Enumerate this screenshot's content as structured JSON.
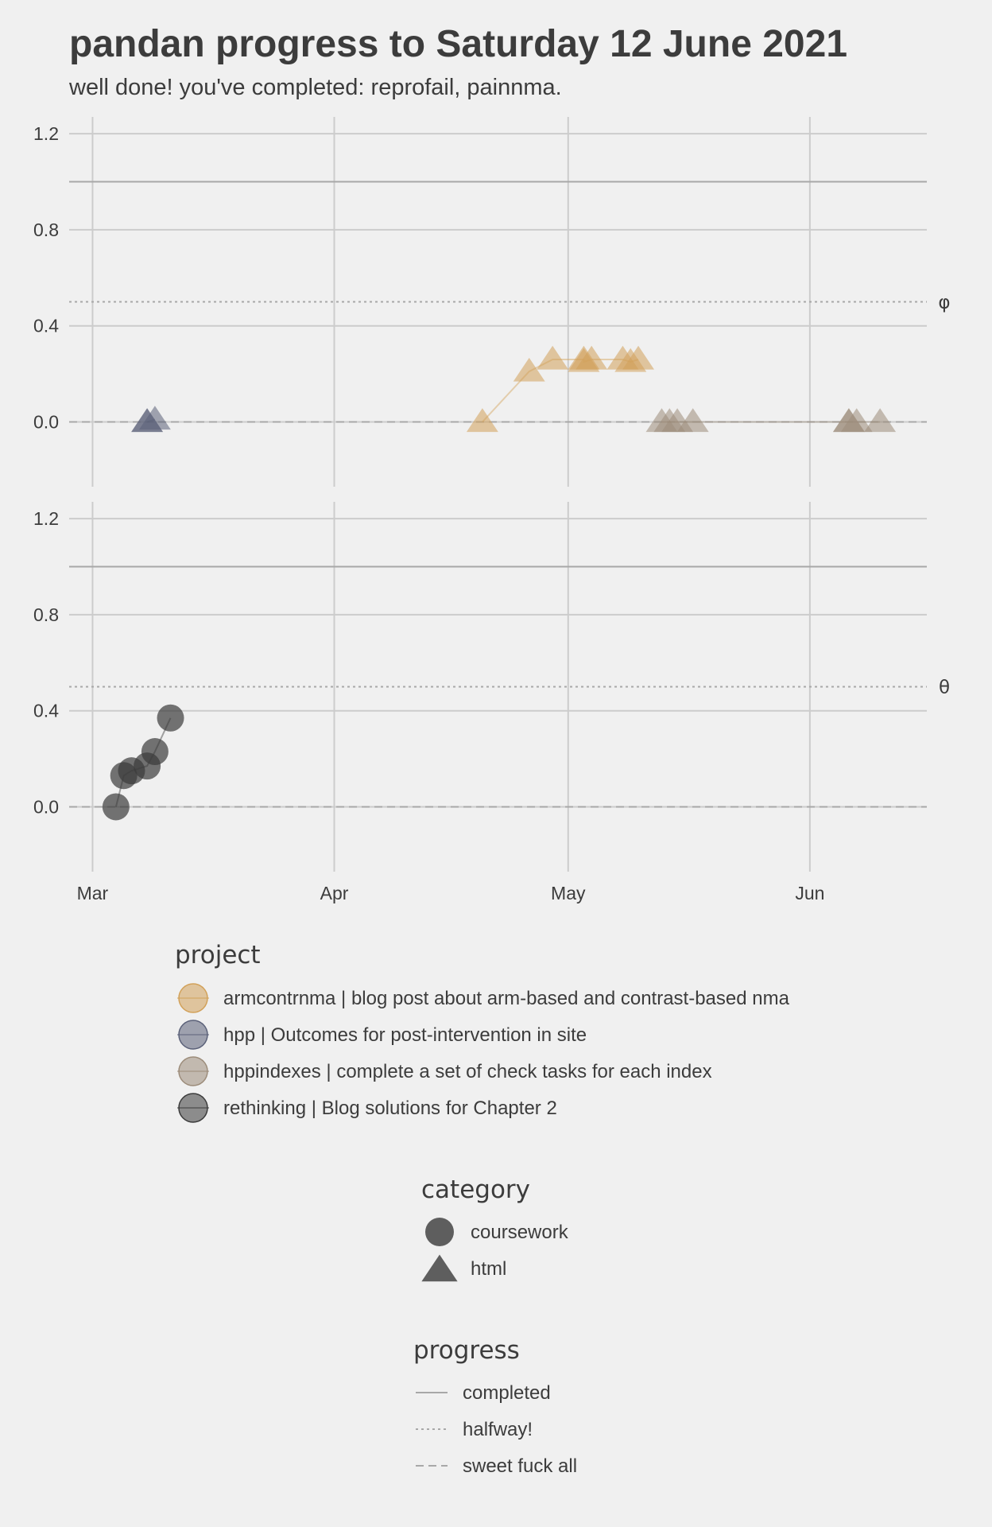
{
  "chart_data": {
    "type": "scatter",
    "title": "pandan progress to Saturday 12 June 2021",
    "subtitle": "well done! you've completed: reprofail, painnma.",
    "x_axis": {
      "type": "date",
      "range": [
        "2021-02-26",
        "2021-06-16"
      ],
      "ticks": [
        {
          "date": "2021-03-01",
          "label": "Mar"
        },
        {
          "date": "2021-04-01",
          "label": "Apr"
        },
        {
          "date": "2021-05-01",
          "label": "May"
        },
        {
          "date": "2021-06-01",
          "label": "Jun"
        }
      ]
    },
    "y_axis": {
      "range": [
        -0.27,
        1.27
      ],
      "ticks": [
        0.0,
        0.4,
        0.8,
        1.2
      ],
      "tick_labels": [
        "0.0",
        "0.4",
        "0.8",
        "1.2"
      ]
    },
    "grid": true,
    "reference_lines": [
      {
        "y": 1.0,
        "progress": "completed",
        "style": "solid"
      },
      {
        "y": 0.5,
        "progress": "halfway!",
        "style": "dotted"
      },
      {
        "y": 0.0,
        "progress": "sweet fuck all",
        "style": "dashed"
      }
    ],
    "panels": [
      {
        "strip_label": "φ",
        "series": [
          {
            "project": "hpp",
            "category": "html",
            "points": [
              [
                "2021-03-08",
                0.0
              ],
              [
                "2021-03-09",
                0.01
              ],
              [
                "2021-03-08",
                0.0
              ]
            ]
          },
          {
            "project": "armcontrnma",
            "category": "html",
            "points": [
              [
                "2021-04-20",
                0.0
              ],
              [
                "2021-04-26",
                0.21
              ],
              [
                "2021-04-29",
                0.26
              ],
              [
                "2021-05-03",
                0.26
              ],
              [
                "2021-05-04",
                0.26
              ],
              [
                "2021-05-03",
                0.25
              ],
              [
                "2021-05-08",
                0.26
              ],
              [
                "2021-05-09",
                0.25
              ],
              [
                "2021-05-10",
                0.26
              ]
            ]
          },
          {
            "project": "hppindexes",
            "category": "html",
            "points": [
              [
                "2021-05-13",
                0.0
              ],
              [
                "2021-05-14",
                0.0
              ],
              [
                "2021-05-15",
                0.0
              ],
              [
                "2021-05-17",
                0.0
              ],
              [
                "2021-06-06",
                0.0
              ],
              [
                "2021-06-07",
                0.0
              ],
              [
                "2021-06-06",
                0.0
              ],
              [
                "2021-06-10",
                0.0
              ]
            ]
          }
        ]
      },
      {
        "strip_label": "θ",
        "series": [
          {
            "project": "rethinking",
            "category": "coursework",
            "points": [
              [
                "2021-03-04",
                0.0
              ],
              [
                "2021-03-05",
                0.13
              ],
              [
                "2021-03-06",
                0.15
              ],
              [
                "2021-03-08",
                0.17
              ],
              [
                "2021-03-09",
                0.23
              ],
              [
                "2021-03-11",
                0.37
              ]
            ]
          }
        ]
      }
    ]
  },
  "colors": {
    "armcontrnma": "#d2a159",
    "hpp": "#5b6179",
    "hppindexes": "#9c8c7a",
    "rethinking": "#3b3b3b",
    "background": "#f0f0f0",
    "grid": "#cccccc",
    "reference": "#a8a8a8",
    "text": "#3c3c3c"
  },
  "legend": {
    "project": {
      "title": "project",
      "items": [
        {
          "key": "armcontrnma",
          "label": "armcontrnma | blog post about arm-based and contrast-based nma"
        },
        {
          "key": "hpp",
          "label": "hpp | Outcomes for post-intervention in site"
        },
        {
          "key": "hppindexes",
          "label": "hppindexes | complete a set of check tasks for each index"
        },
        {
          "key": "rethinking",
          "label": "rethinking | Blog solutions for Chapter 2"
        }
      ]
    },
    "category": {
      "title": "category",
      "items": [
        {
          "shape": "circle",
          "label": "coursework"
        },
        {
          "shape": "triangle",
          "label": "html"
        }
      ]
    },
    "progress": {
      "title": "progress",
      "items": [
        {
          "style": "solid",
          "label": "completed"
        },
        {
          "style": "dotted",
          "label": "halfway!"
        },
        {
          "style": "dashed",
          "label": "sweet fuck all"
        }
      ]
    }
  }
}
